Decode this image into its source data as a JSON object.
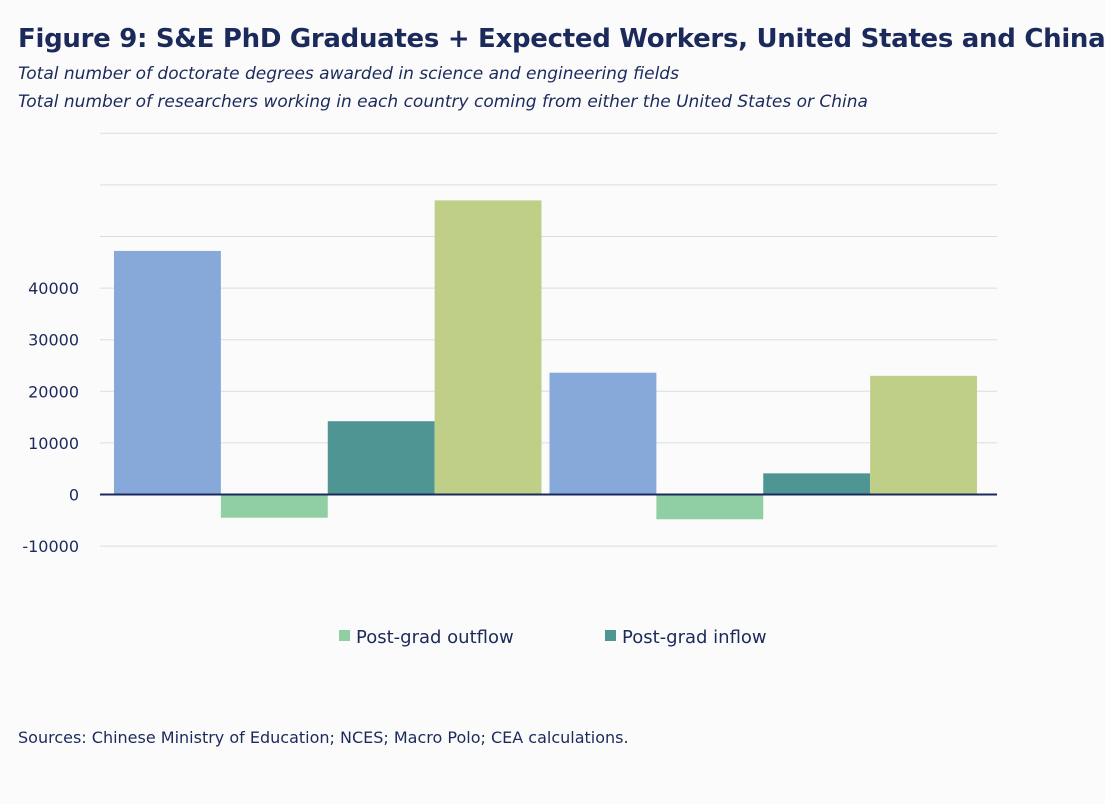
{
  "header": {
    "title": "Figure 9: S&E PhD Graduates + Expected Workers, United States and China",
    "subtitle_1": "Total number of doctorate degrees awarded in science and engineering fields",
    "subtitle_2": "Total number of researchers working in each country coming from either the United States or China"
  },
  "source": "Sources: Chinese Ministry of Education; NCES; Macro Polo; CEA calculations.",
  "chart_data": {
    "type": "bar",
    "categories": [
      "",
      ""
    ],
    "series": [
      {
        "name": "",
        "color": "#86a9d9",
        "values": [
          47200,
          23600
        ]
      },
      {
        "name": "Post-grad outflow",
        "color": "#8fcfa3",
        "values": [
          -4500,
          -4800
        ]
      },
      {
        "name": "Post-grad inflow",
        "color": "#4f9593",
        "values": [
          14200,
          4100
        ]
      },
      {
        "name": "",
        "color": "#bfcf88",
        "values": [
          57000,
          23000
        ]
      }
    ],
    "ylim": [
      -10000,
      70000
    ],
    "yticks": [
      -10000,
      0,
      10000,
      20000,
      30000,
      40000
    ],
    "grid": true,
    "legend_position": "bottom",
    "legend": [
      {
        "series": "Post-grad outflow",
        "color": "#8fcfa3"
      },
      {
        "series": "Post-grad inflow",
        "color": "#4f9593"
      }
    ],
    "xlabel": "",
    "ylabel": ""
  }
}
